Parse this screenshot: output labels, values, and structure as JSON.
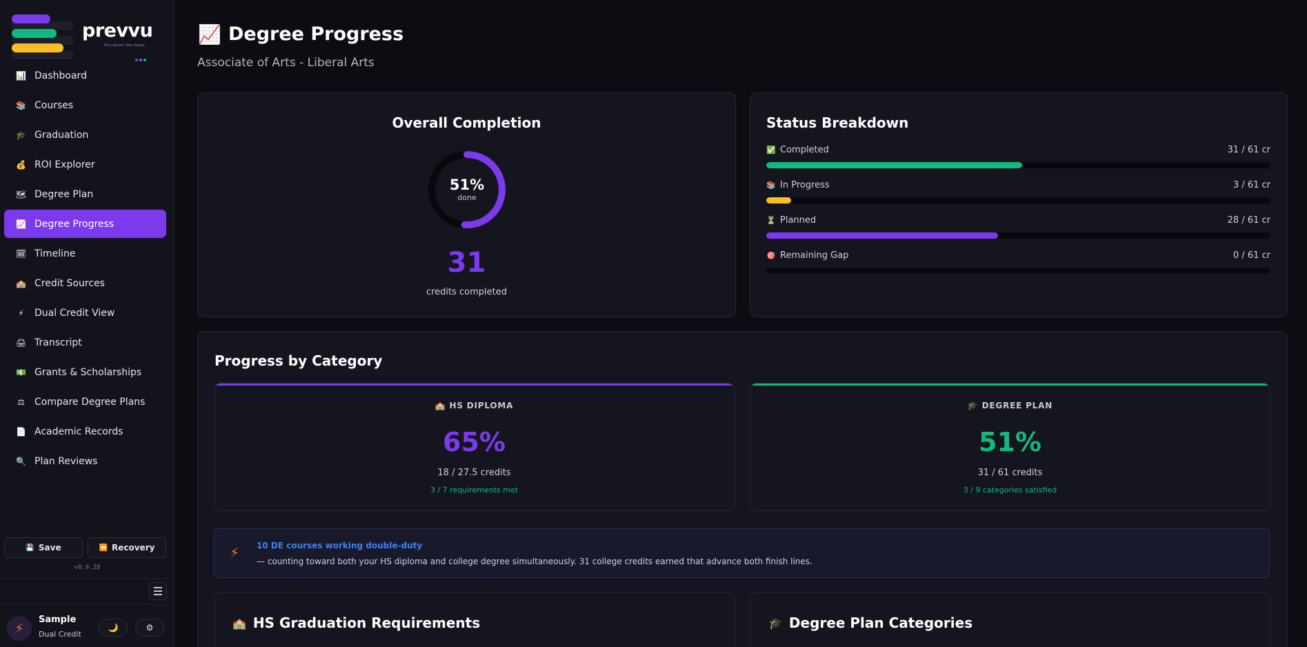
{
  "brand": {
    "name": "prevvu",
    "tagline": "Plan ahead. See clearly.",
    "bars": [
      "#7c3aed",
      "#10b981",
      "#fbbf24"
    ],
    "dots": [
      "#7c3aed",
      "#3b82f6",
      "#10b981"
    ]
  },
  "sidebar": {
    "items": [
      {
        "label": "Dashboard",
        "icon": "📊"
      },
      {
        "label": "Courses",
        "icon": "📚"
      },
      {
        "label": "Graduation",
        "icon": "🎓"
      },
      {
        "label": "ROI Explorer",
        "icon": "💰"
      },
      {
        "label": "Degree Plan",
        "icon": "🗺"
      },
      {
        "label": "Degree Progress",
        "icon": "📈"
      },
      {
        "label": "Timeline",
        "icon": "🗓"
      },
      {
        "label": "Credit Sources",
        "icon": "🏫"
      },
      {
        "label": "Dual Credit View",
        "icon": "⚡"
      },
      {
        "label": "Transcript",
        "icon": "🖨"
      },
      {
        "label": "Grants & Scholarships",
        "icon": "💵"
      },
      {
        "label": "Compare Degree Plans",
        "icon": "⚖"
      },
      {
        "label": "Academic Records",
        "icon": "📄"
      },
      {
        "label": "Plan Reviews",
        "icon": "🔍"
      }
    ],
    "active_index": 5,
    "save_label": "Save",
    "recovery_label": "Recovery",
    "version": "v0.9.28",
    "user": {
      "name": "Sample",
      "plan": "Dual Credit"
    },
    "theme_icon": "🌙",
    "settings_icon": "⚙"
  },
  "page": {
    "title": "Degree Progress",
    "title_icon": "📈",
    "subtitle": "Associate of Arts - Liberal Arts"
  },
  "overall": {
    "title": "Overall Completion",
    "percent_label": "51%",
    "percent_value": 0.51,
    "done_label": "done",
    "credits": "31",
    "credits_label": "credits completed",
    "ring_color": "#7c3aed"
  },
  "status": {
    "title": "Status Breakdown",
    "rows": [
      {
        "label": "Completed",
        "icon": "✅",
        "value": "31 / 61 cr",
        "fraction": 0.508,
        "color": "#10b981"
      },
      {
        "label": "In Progress",
        "icon": "📚",
        "value": "3 / 61 cr",
        "fraction": 0.049,
        "color": "#fbbf24"
      },
      {
        "label": "Planned",
        "icon": "⏳",
        "value": "28 / 61 cr",
        "fraction": 0.459,
        "color": "#7c3aed"
      },
      {
        "label": "Remaining Gap",
        "icon": "🎯",
        "value": "0 / 61 cr",
        "fraction": 0.0,
        "color": "#ef4444"
      }
    ]
  },
  "categories": {
    "title": "Progress by Category",
    "hs": {
      "label": "HS DIPLOMA",
      "icon": "🏫",
      "percent": "65%",
      "credits": "18 / 27.5 credits",
      "requirements": "3 / 7 requirements met",
      "color": "#7c3aed"
    },
    "degree": {
      "label": "DEGREE PLAN",
      "icon": "🎓",
      "percent": "51%",
      "credits": "31 / 61 credits",
      "requirements": "3 / 9 categories satisfied",
      "color": "#10b981"
    },
    "double_duty": {
      "icon": "⚡",
      "title": "10 DE courses working double-duty",
      "description": "— counting toward both your HS diploma and college degree simultaneously. 31 college credits earned that advance both finish lines."
    },
    "hs_requirements_title": "HS Graduation Requirements",
    "hs_requirements_icon": "🏫",
    "degree_categories_title": "Degree Plan Categories",
    "degree_categories_icon": "🎓"
  }
}
